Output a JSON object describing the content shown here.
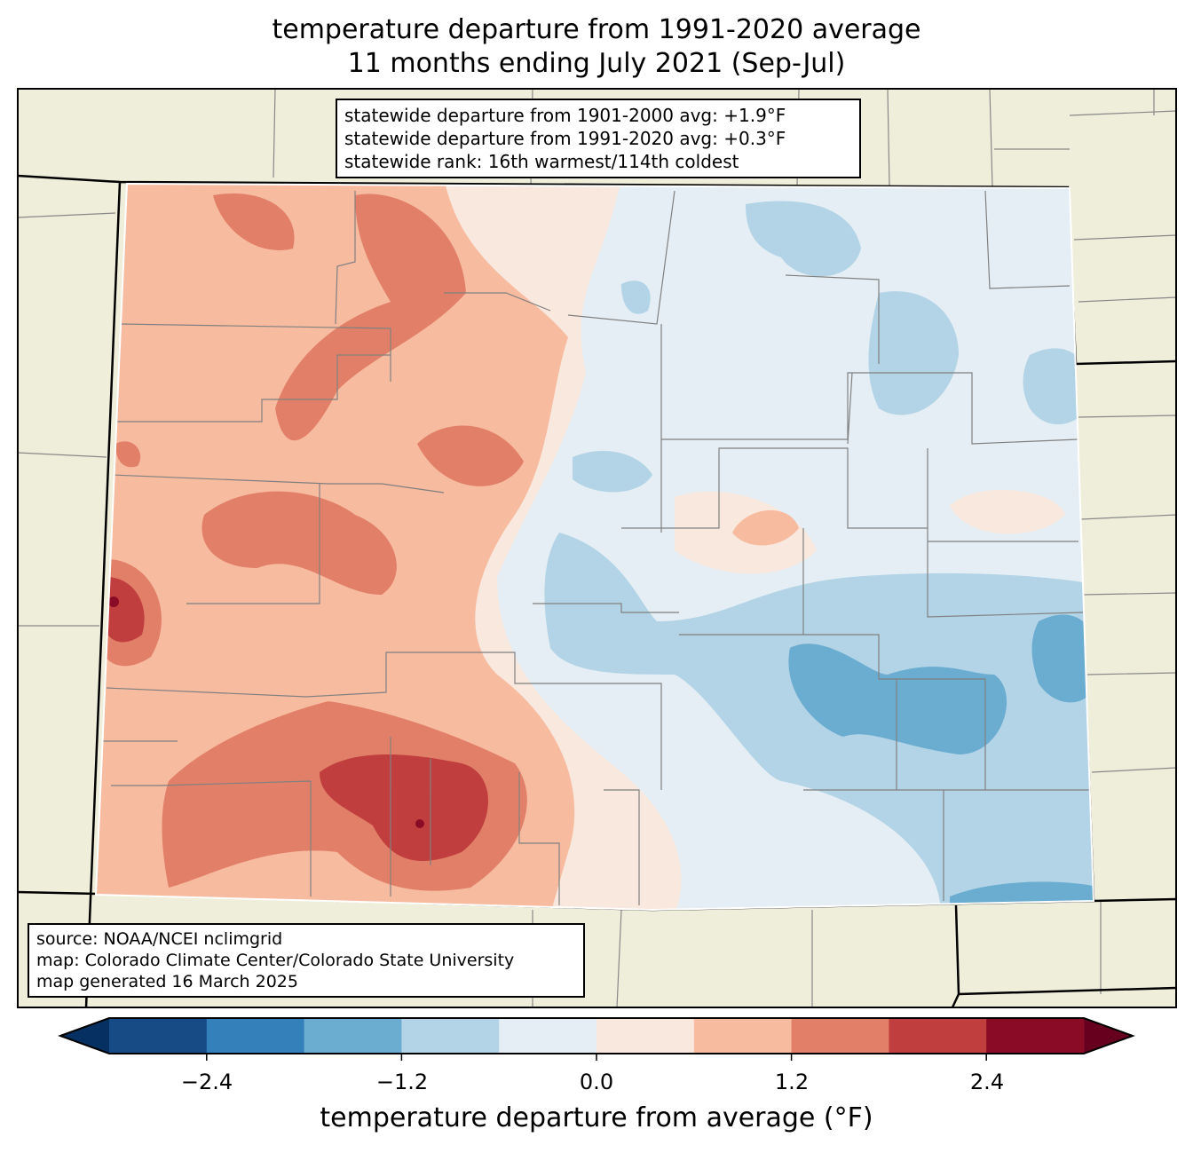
{
  "title": {
    "line1": "temperature departure from 1991-2020 average",
    "line2": "11 months ending July 2021 (Sep-Jul)"
  },
  "stats_box": {
    "lines": [
      "statewide departure from 1901-2000 avg: +1.9°F",
      "statewide departure from 1991-2020 avg: +0.3°F",
      "statewide rank: 16th warmest/114th coldest"
    ]
  },
  "source_box": {
    "lines": [
      "source: NOAA/NCEI nclimgrid",
      "map: Colorado Climate Center/Colorado State University",
      "map generated 16 March 2025"
    ]
  },
  "colorbar": {
    "label": "temperature departure from average (°F)",
    "ticks": [
      "−2.4",
      "−1.2",
      "0.0",
      "1.2",
      "2.4"
    ],
    "bounds": [
      -3.0,
      -2.4,
      -1.8,
      -1.2,
      -0.6,
      0.0,
      0.6,
      1.2,
      1.8,
      2.4,
      3.0
    ],
    "colors": [
      "#164b86",
      "#3380ba",
      "#6bacd1",
      "#b2d4e6",
      "#e5eef4",
      "#f9e8de",
      "#f7bba0",
      "#e27f68",
      "#c13e3e",
      "#8a0b26"
    ],
    "under_color": "#053061",
    "over_color": "#67001f"
  },
  "land_color": "#efeedb"
}
